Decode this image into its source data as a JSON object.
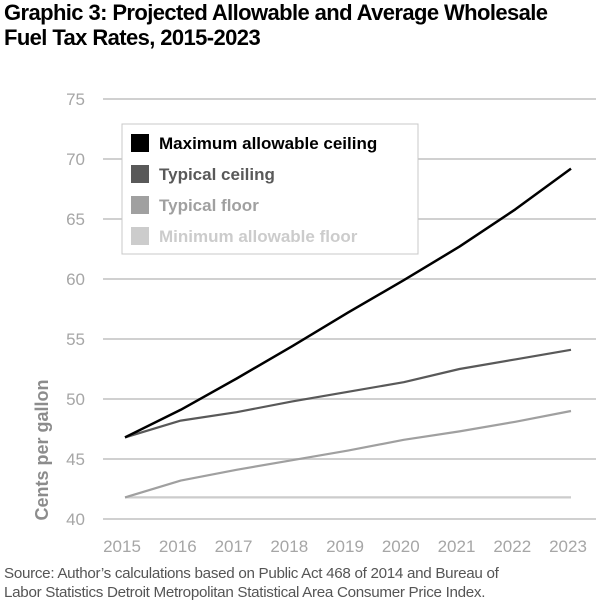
{
  "title_line1": "Graphic 3: Projected Allowable and Average Wholesale",
  "title_line2": "Fuel Tax Rates, 2015-2023",
  "source_line1": "Source: Author’s calculations based on Public Act 468 of 2014 and Bureau of",
  "source_line2": "Labor Statistics Detroit Metropolitan Statistical Area Consumer Price Index.",
  "chart_data": {
    "type": "line",
    "title": "Graphic 3: Projected Allowable and Average Wholesale Fuel Tax Rates, 2015-2023",
    "xlabel": "",
    "ylabel": "Cents per gallon",
    "x": [
      2015,
      2016,
      2017,
      2018,
      2019,
      2020,
      2021,
      2022,
      2023
    ],
    "x_tick_labels": [
      "2015",
      "2016",
      "2017",
      "2018",
      "2019",
      "2020",
      "2021",
      "2022",
      "2023"
    ],
    "y_ticks": [
      40,
      45,
      50,
      55,
      60,
      65,
      70,
      75
    ],
    "y_tick_labels": [
      "40",
      "45",
      "50",
      "55",
      "60",
      "65",
      "70",
      "75"
    ],
    "ylim": [
      40,
      75
    ],
    "grid": "horizontal",
    "legend_position": "top-left",
    "series": [
      {
        "name": "Maximum allowable ceiling",
        "color": "#000000",
        "values": [
          46.8,
          49.1,
          51.7,
          54.4,
          57.2,
          59.9,
          62.7,
          65.8,
          69.2
        ]
      },
      {
        "name": "Typical ceiling",
        "color": "#595959",
        "values": [
          46.8,
          48.2,
          48.9,
          49.8,
          50.6,
          51.4,
          52.5,
          53.3,
          54.1
        ]
      },
      {
        "name": "Typical floor",
        "color": "#a0a0a0",
        "values": [
          41.8,
          43.2,
          44.1,
          44.9,
          45.7,
          46.6,
          47.3,
          48.1,
          49.0
        ]
      },
      {
        "name": "Minimum allowable floor",
        "color": "#cccccc",
        "values": [
          41.8,
          41.8,
          41.8,
          41.8,
          41.8,
          41.8,
          41.8,
          41.8,
          41.8
        ]
      }
    ]
  }
}
